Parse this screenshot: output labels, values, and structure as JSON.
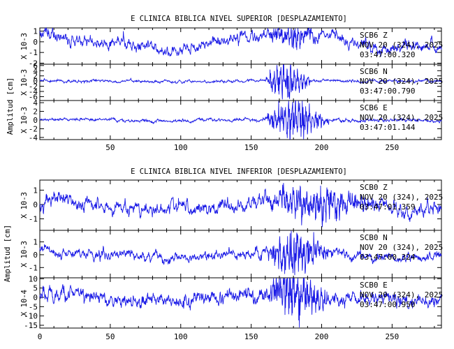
{
  "colors": {
    "trace": "#1a1ae6",
    "axis": "#000000",
    "background": "#ffffff"
  },
  "chart_data": [
    {
      "type": "line",
      "title": "E CLINICA BIBLICA NIVEL SUPERIOR [DESPLAZAMIENTO]",
      "ylabel_group": "Amplitud [cm]",
      "xlim": [
        0,
        285
      ],
      "x_ticks": [
        50,
        100,
        150,
        200,
        250
      ],
      "panels": [
        {
          "channel": "SCB6 Z",
          "date": "NOV 20 (324), 2025",
          "time": "03:47:00.320",
          "scale_label": "X 10-3",
          "ylim": [
            -2.1,
            1.3
          ],
          "y_ticks": [
            -2,
            -1,
            0,
            1
          ],
          "event": {
            "start": 160,
            "end": 200,
            "amplitude": 1.0
          },
          "background": {
            "amplitude": 0.5,
            "drift": 0.9
          },
          "seed": 11
        },
        {
          "channel": "SCB6 N",
          "date": "NOV 20 (324), 2025",
          "time": "03:47:00.790",
          "scale_label": "X 10-3",
          "ylim": [
            -7.5,
            6.5
          ],
          "y_ticks": [
            -6,
            -4,
            -2,
            0,
            2,
            4,
            6
          ],
          "event": {
            "start": 160,
            "end": 192,
            "amplitude": 6.8
          },
          "background": {
            "amplitude": 0.5,
            "drift": 0.2
          },
          "seed": 23
        },
        {
          "channel": "SCB6 E",
          "date": "NOV 20 (324), 2025",
          "time": "03:47:01.144",
          "scale_label": "X 10-3",
          "ylim": [
            -4.5,
            4.5
          ],
          "y_ticks": [
            -4,
            -2,
            0,
            2,
            4
          ],
          "event": {
            "start": 160,
            "end": 205,
            "amplitude": 4.2
          },
          "background": {
            "amplitude": 0.35,
            "drift": 0.2
          },
          "seed": 37
        }
      ]
    },
    {
      "type": "line",
      "title": "E CLINICA BIBLICA NIVEL INFERIOR [DESPLAZAMIENTO]",
      "ylabel_group": "Amplitud [cm]",
      "xlim": [
        0,
        285
      ],
      "x_ticks": [
        0,
        50,
        100,
        150,
        200,
        250
      ],
      "panels": [
        {
          "channel": "SCB0 Z",
          "date": "NOV 20 (324), 2025",
          "time": "03:47:01.359",
          "scale_label": "X 10-3",
          "ylim": [
            -1.8,
            1.7
          ],
          "y_ticks": [
            -1,
            0,
            1
          ],
          "event": {
            "start": 160,
            "end": 240,
            "amplitude": 1.0
          },
          "background": {
            "amplitude": 0.45,
            "drift": 0.35
          },
          "seed": 51
        },
        {
          "channel": "SCB0 N",
          "date": "NOV 20 (324), 2025",
          "time": "03:47:00.324",
          "scale_label": "X 10-3",
          "ylim": [
            -1.8,
            1.9
          ],
          "y_ticks": [
            -1,
            0,
            1
          ],
          "event": {
            "start": 160,
            "end": 205,
            "amplitude": 1.7
          },
          "background": {
            "amplitude": 0.35,
            "drift": 0.35
          },
          "seed": 67
        },
        {
          "channel": "SCB0 E",
          "date": "NOV 20 (324), 2025",
          "time": "03:47:00.950",
          "scale_label": "X 10-4",
          "ylim": [
            -16.5,
            10.5
          ],
          "y_ticks": [
            -15,
            -10,
            -5,
            0,
            5,
            10
          ],
          "event": {
            "start": 160,
            "end": 205,
            "amplitude": 14
          },
          "background": {
            "amplitude": 3.5,
            "drift": 2.5
          },
          "seed": 83
        }
      ]
    }
  ]
}
